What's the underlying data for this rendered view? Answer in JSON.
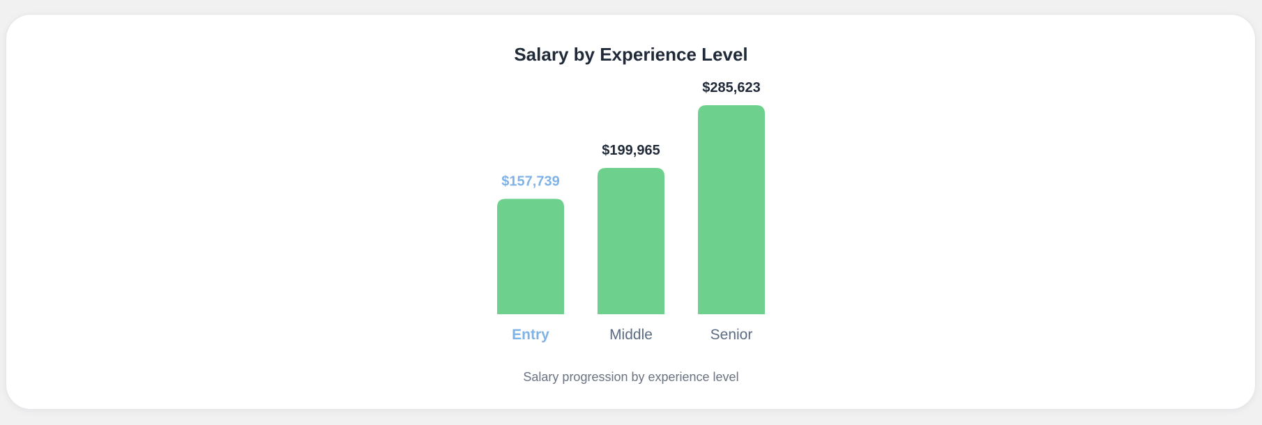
{
  "chart_data": {
    "type": "bar",
    "title": "Salary by Experience Level",
    "caption": "Salary progression by experience level",
    "categories": [
      "Entry",
      "Middle",
      "Senior"
    ],
    "values": [
      157739,
      199965,
      285623
    ],
    "value_labels": [
      "$157,739",
      "$199,965",
      "$285,623"
    ],
    "highlighted_index": 0,
    "bar_color": "#6dd08c",
    "highlight_label_color": "#7fb3e6",
    "label_color": "#1f2937",
    "category_color": "#5b6b82",
    "ylim": [
      0,
      285623
    ],
    "grid": false,
    "legend": "none"
  }
}
